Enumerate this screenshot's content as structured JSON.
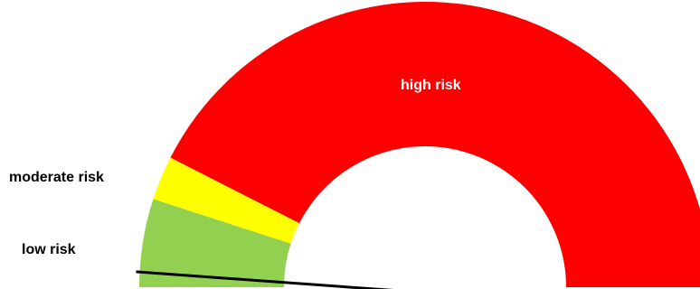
{
  "chart_data": {
    "type": "gauge",
    "min": 0,
    "max": 100,
    "zones": [
      {
        "label": "low risk",
        "from": 0,
        "to": 10,
        "color": "#92d050",
        "label_color": "#000000"
      },
      {
        "label": "moderate risk",
        "from": 10,
        "to": 15,
        "color": "#ffff00",
        "label_color": "#000000"
      },
      {
        "label": "high risk",
        "from": 15,
        "to": 100,
        "color": "#ff0000",
        "label_color": "#ffffff"
      }
    ],
    "needle_value": 1.7,
    "needle_color": "#000000",
    "title": "",
    "legend": "none"
  }
}
